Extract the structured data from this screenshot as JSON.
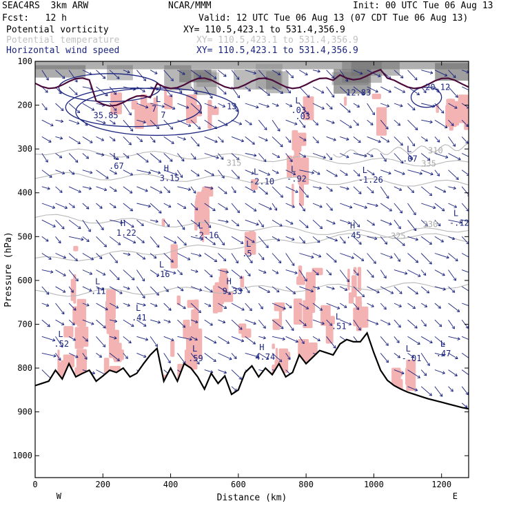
{
  "header": {
    "model_left": "SEAC4RS  3km ARW",
    "model_center": "NCAR/MMM",
    "init": "Init: 00 UTC Tue 06 Aug 13",
    "fcst": "Fcst:   12 h",
    "valid": "Valid: 12 UTC Tue 06 Aug 13 (07 CDT Tue 06 Aug 13)"
  },
  "fields": [
    {
      "label": "Potential vorticity",
      "xy": "XY= 110.5,423.1 to 531.4,356.9",
      "color": "#000000"
    },
    {
      "label": "Potential temperature",
      "xy": "XY= 110.5,423.1 to 531.4,356.9",
      "color": "#c0c0c0"
    },
    {
      "label": "Horizontal wind speed",
      "xy": "XY= 110.5,423.1 to 531.4,356.9",
      "color": "#1a237e"
    }
  ],
  "colors": {
    "pv_shading": "#f4b3b3",
    "theta_contour": "#b8b8b8",
    "wind_vectors": "#1a237e",
    "terrain": "#000000",
    "pv_contour": "#4a0a3a",
    "stratosphere_shading": "#707070"
  },
  "chart_data": {
    "type": "cross-section",
    "xlabel": "Distance (km)",
    "ylabel": "Pressure (hPa)",
    "xlim": [
      0,
      1280
    ],
    "ylim": [
      1050,
      100
    ],
    "y_reversed": true,
    "x_ticks": [
      "0",
      "200",
      "400",
      "600",
      "800",
      "1000",
      "1200"
    ],
    "x_tick_values": [
      0,
      200,
      400,
      600,
      800,
      1000,
      1200
    ],
    "y_ticks": [
      "100",
      "200",
      "300",
      "400",
      "500",
      "600",
      "700",
      "800",
      "900",
      "1000"
    ],
    "y_tick_values": [
      100,
      200,
      300,
      400,
      500,
      600,
      700,
      800,
      900,
      1000
    ],
    "endpoints": {
      "left": "W",
      "right": "E"
    },
    "terrain": {
      "x": [
        0,
        20,
        40,
        60,
        80,
        100,
        120,
        140,
        160,
        180,
        200,
        220,
        240,
        260,
        280,
        300,
        320,
        340,
        360,
        380,
        400,
        420,
        440,
        460,
        480,
        500,
        520,
        540,
        560,
        580,
        600,
        620,
        640,
        660,
        680,
        700,
        720,
        740,
        760,
        780,
        800,
        820,
        840,
        860,
        880,
        900,
        920,
        940,
        960,
        980,
        1000,
        1020,
        1040,
        1060,
        1080,
        1100,
        1120,
        1140,
        1160,
        1180,
        1200,
        1220,
        1240,
        1260,
        1280
      ],
      "p": [
        840,
        835,
        830,
        805,
        825,
        790,
        820,
        812,
        805,
        830,
        818,
        805,
        810,
        800,
        820,
        812,
        790,
        770,
        755,
        830,
        800,
        830,
        790,
        800,
        820,
        848,
        812,
        835,
        818,
        860,
        850,
        810,
        795,
        820,
        800,
        815,
        790,
        820,
        810,
        770,
        790,
        775,
        760,
        765,
        770,
        745,
        735,
        740,
        740,
        720,
        765,
        805,
        828,
        840,
        848,
        855,
        860,
        865,
        870,
        874,
        878,
        882,
        886,
        890,
        893
      ]
    },
    "theta_contours": [
      {
        "label": "310",
        "x": [
          880,
          1280
        ],
        "p": [
          312,
          295
        ]
      },
      {
        "label": "315",
        "x": [
          0,
          1280
        ],
        "p": [
          305,
          335
        ]
      },
      {
        "label": "320",
        "x": [
          0,
          1280
        ],
        "p": [
          360,
          380
        ]
      },
      {
        "label": "325",
        "x": [
          0,
          1280
        ],
        "p": [
          455,
          505
        ]
      },
      {
        "label": "330",
        "x": [
          0,
          1280
        ],
        "p": [
          555,
          480
        ]
      },
      {
        "label": "335",
        "x": [
          0,
          1280
        ],
        "p": [
          630,
          610
        ]
      }
    ],
    "theta_labels": [
      {
        "text": "310",
        "x": 1160,
        "p": 310
      },
      {
        "text": "315",
        "x": 565,
        "p": 338
      },
      {
        "text": "330",
        "x": 1145,
        "p": 478
      },
      {
        "text": "325",
        "x": 1050,
        "p": 505
      },
      {
        "text": "335",
        "x": 1140,
        "p": 340
      }
    ],
    "wind_speed_labels": [
      {
        "text": "35.85",
        "x": 172,
        "p": 230
      },
      {
        "text": "12.83",
        "x": 918,
        "p": 178
      },
      {
        "text": "20.12",
        "x": 1152,
        "p": 165
      },
      {
        "text": ".03",
        "x": 768,
        "p": 232
      },
      {
        "text": "7",
        "x": 371,
        "p": 229
      },
      {
        "text": "13",
        "x": 566,
        "p": 209
      }
    ],
    "extrema": [
      {
        "type": "L",
        "value": ".67",
        "x": 230,
        "p": 342
      },
      {
        "type": "L",
        "value": "7",
        "x": 356,
        "p": 212
      },
      {
        "type": "L",
        "value": ".03",
        "x": 768,
        "p": 215
      },
      {
        "type": "H",
        "value": "3.15",
        "x": 380,
        "p": 370
      },
      {
        "type": "L",
        "value": "-2.10",
        "x": 645,
        "p": 378
      },
      {
        "type": "L",
        "value": "-.92",
        "x": 755,
        "p": 371
      },
      {
        "type": "L",
        "value": "-1.26",
        "x": 966,
        "p": 374
      },
      {
        "type": "L",
        "value": ".07",
        "x": 1097,
        "p": 326
      },
      {
        "type": "L",
        "value": "-.12",
        "x": 1235,
        "p": 472
      },
      {
        "type": "H",
        "value": "1.22",
        "x": 252,
        "p": 495
      },
      {
        "type": "L",
        "value": "-2.16",
        "x": 481,
        "p": 500
      },
      {
        "type": "H",
        "value": ".45",
        "x": 930,
        "p": 500
      },
      {
        "type": "L",
        "value": ".5",
        "x": 623,
        "p": 542
      },
      {
        "type": "L",
        "value": ".16",
        "x": 366,
        "p": 589
      },
      {
        "type": "H",
        "value": "9.33",
        "x": 565,
        "p": 628
      },
      {
        "type": "L",
        "value": ".11",
        "x": 177,
        "p": 628
      },
      {
        "type": "L",
        "value": ".41",
        "x": 297,
        "p": 688
      },
      {
        "type": "L",
        "value": ".51",
        "x": 887,
        "p": 708
      },
      {
        "type": "L",
        "value": ".52",
        "x": 68,
        "p": 748
      },
      {
        "type": "L",
        "value": ".59",
        "x": 464,
        "p": 781
      },
      {
        "type": "H",
        "value": "4.74",
        "x": 662,
        "p": 778
      },
      {
        "type": "L",
        "value": "-.01",
        "x": 1094,
        "p": 781
      },
      {
        "type": "L",
        "value": ".47",
        "x": 1196,
        "p": 770
      }
    ]
  }
}
